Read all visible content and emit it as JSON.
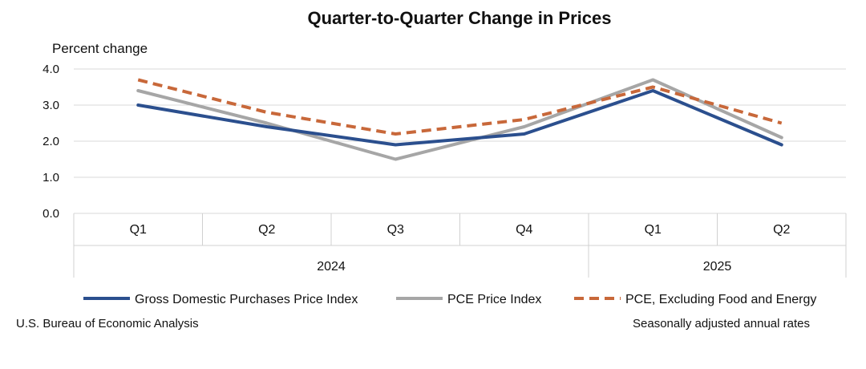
{
  "chart_data": {
    "type": "line",
    "title": "Quarter-to-Quarter Change in Prices",
    "ylabel": "Percent change",
    "ylim": [
      0,
      4
    ],
    "yticks": [
      "0.0",
      "1.0",
      "2.0",
      "3.0",
      "4.0"
    ],
    "grid": true,
    "categories": [
      "Q1",
      "Q2",
      "Q3",
      "Q4",
      "Q1",
      "Q2"
    ],
    "years": [
      {
        "label": "2024",
        "span": 4
      },
      {
        "label": "2025",
        "span": 2
      }
    ],
    "series": [
      {
        "name": "Gross Domestic Purchases Price Index",
        "color": "#2b4f8e",
        "style": "solid",
        "values": [
          3.0,
          2.4,
          1.9,
          2.2,
          3.4,
          1.9
        ]
      },
      {
        "name": "PCE Price Index",
        "color": "#a6a6a6",
        "style": "solid",
        "values": [
          3.4,
          2.5,
          1.5,
          2.4,
          3.7,
          2.1
        ]
      },
      {
        "name": "PCE, Excluding Food and Energy",
        "color": "#c8683a",
        "style": "dashed",
        "values": [
          3.7,
          2.8,
          2.2,
          2.6,
          3.5,
          2.5
        ]
      }
    ],
    "legend_position": "bottom"
  },
  "footer": {
    "source": "U.S. Bureau of Economic Analysis",
    "note": "Seasonally adjusted annual rates"
  }
}
